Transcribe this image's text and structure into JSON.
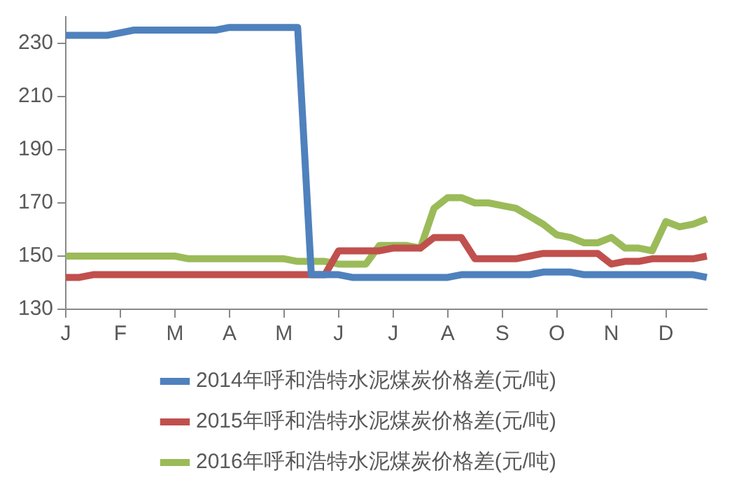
{
  "chart_data": {
    "type": "line",
    "categories": [
      "J",
      null,
      null,
      null,
      "F",
      null,
      null,
      null,
      "M",
      null,
      null,
      null,
      "A",
      null,
      null,
      null,
      "M",
      null,
      null,
      null,
      "J",
      null,
      null,
      null,
      "J",
      null,
      null,
      null,
      "A",
      null,
      null,
      null,
      "S",
      null,
      null,
      null,
      "O",
      null,
      null,
      null,
      "N",
      null,
      null,
      null,
      "D",
      null,
      null,
      null
    ],
    "series": [
      {
        "name": "2014年呼和浩特水泥煤炭价格差(元/吨)",
        "color": "#4f81bd",
        "values": [
          233,
          233,
          233,
          233,
          234,
          235,
          235,
          235,
          235,
          235,
          235,
          235,
          236,
          236,
          236,
          236,
          236,
          236,
          143,
          143,
          143,
          142,
          142,
          142,
          142,
          142,
          142,
          142,
          142,
          143,
          143,
          143,
          143,
          143,
          143,
          144,
          144,
          144,
          143,
          143,
          143,
          143,
          143,
          143,
          143,
          143,
          143,
          142
        ]
      },
      {
        "name": "2015年呼和浩特水泥煤炭价格差(元/吨)",
        "color": "#c0504d",
        "values": [
          142,
          142,
          143,
          143,
          143,
          143,
          143,
          143,
          143,
          143,
          143,
          143,
          143,
          143,
          143,
          143,
          143,
          143,
          143,
          143,
          152,
          152,
          152,
          152,
          153,
          153,
          153,
          157,
          157,
          157,
          149,
          149,
          149,
          149,
          150,
          151,
          151,
          151,
          151,
          151,
          147,
          148,
          148,
          149,
          149,
          149,
          149,
          150
        ]
      },
      {
        "name": "2016年呼和浩特水泥煤炭价格差(元/吨)",
        "color": "#9bbb59",
        "values": [
          150,
          150,
          150,
          150,
          150,
          150,
          150,
          150,
          150,
          149,
          149,
          149,
          149,
          149,
          149,
          149,
          149,
          148,
          148,
          148,
          147,
          147,
          147,
          154,
          154,
          154,
          153,
          168,
          172,
          172,
          170,
          170,
          169,
          168,
          165,
          162,
          158,
          157,
          155,
          155,
          157,
          153,
          153,
          152,
          163,
          161,
          162,
          164
        ]
      }
    ],
    "ylim": [
      130,
      240
    ],
    "yticks": [
      130,
      150,
      170,
      190,
      210,
      230
    ],
    "grid": false,
    "legend": "bottom",
    "marker": "none",
    "line_style": "solid"
  }
}
